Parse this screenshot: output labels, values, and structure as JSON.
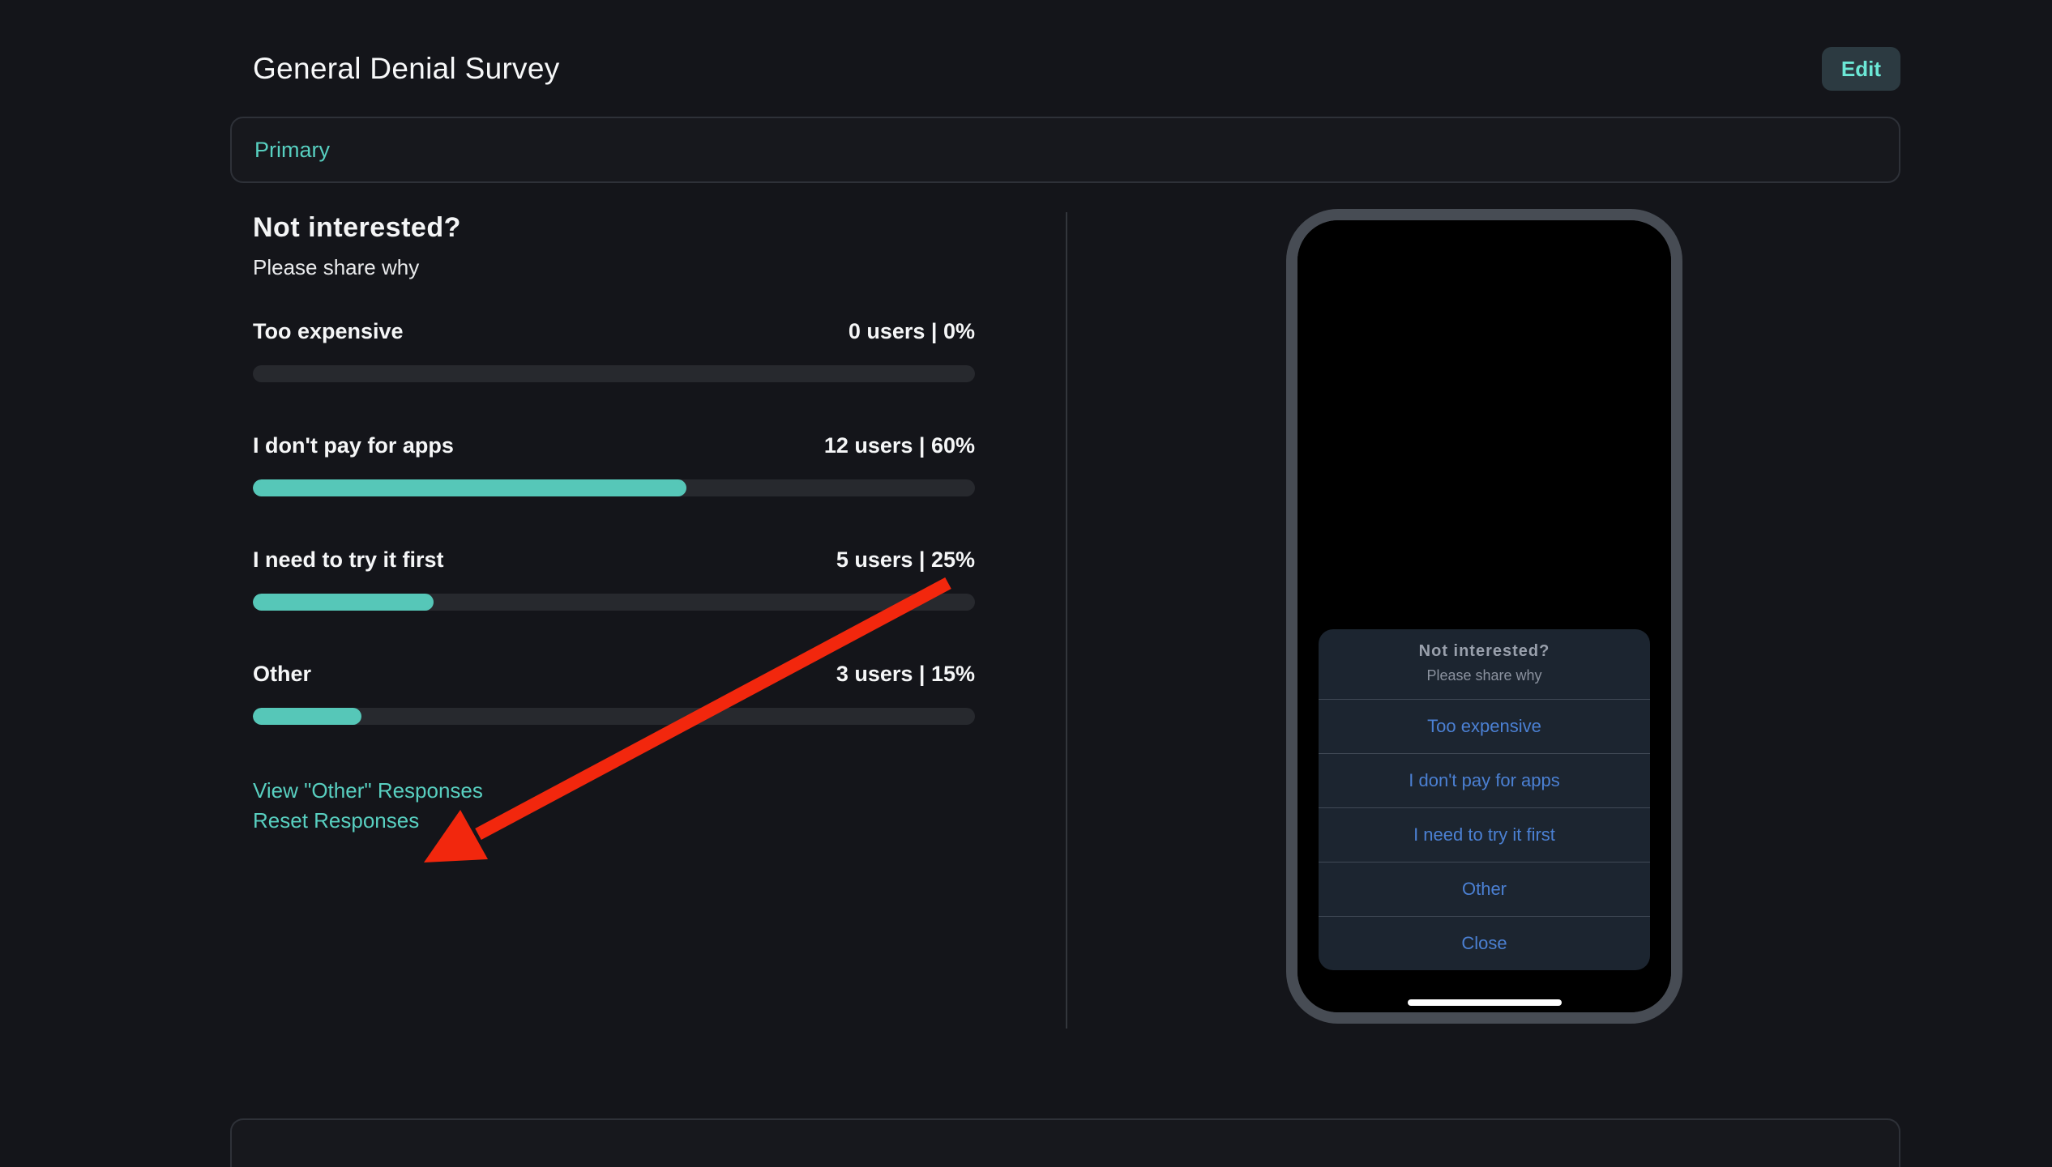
{
  "header": {
    "title": "General Denial Survey",
    "edit_label": "Edit"
  },
  "section": {
    "label": "Primary"
  },
  "survey": {
    "question": "Not interested?",
    "subtitle": "Please share why",
    "options": [
      {
        "label": "Too expensive",
        "users": 0,
        "percent": 0,
        "stat": "0 users | 0%"
      },
      {
        "label": "I don't pay for apps",
        "users": 12,
        "percent": 60,
        "stat": "12 users | 60%"
      },
      {
        "label": "I need to try it first",
        "users": 5,
        "percent": 25,
        "stat": "5 users | 25%"
      },
      {
        "label": "Other",
        "users": 3,
        "percent": 15,
        "stat": "3 users | 15%"
      }
    ],
    "links": {
      "view_other": "View \"Other\" Responses",
      "reset": "Reset Responses"
    }
  },
  "phone_preview": {
    "dialog": {
      "title": "Not interested?",
      "subtitle": "Please share why",
      "options": [
        "Too expensive",
        "I don't pay for apps",
        "I need to try it first",
        "Other"
      ],
      "close_label": "Close"
    }
  },
  "annotation": {
    "arrow_color": "#f2270d",
    "points_at": "Reset Responses"
  },
  "colors": {
    "background": "#14151a",
    "panel_background": "#17181d",
    "accent_teal": "#57cfc0",
    "progress_fill": "#56c7b8",
    "progress_track": "#27292e",
    "edit_button_bg": "#2c3a41",
    "edit_button_text": "#6ce8d6",
    "dialog_bg": "#1c2530",
    "dialog_option_text": "#4b80d3",
    "phone_frame": "#474c54"
  },
  "chart_data": {
    "type": "bar",
    "title": "Not interested? — Please share why",
    "categories": [
      "Too expensive",
      "I don't pay for apps",
      "I need to try it first",
      "Other"
    ],
    "series": [
      {
        "name": "users",
        "values": [
          0,
          12,
          5,
          3
        ]
      },
      {
        "name": "percent",
        "values": [
          0,
          60,
          25,
          15
        ]
      }
    ],
    "xlabel": "",
    "ylabel": "",
    "ylim": [
      0,
      100
    ]
  }
}
